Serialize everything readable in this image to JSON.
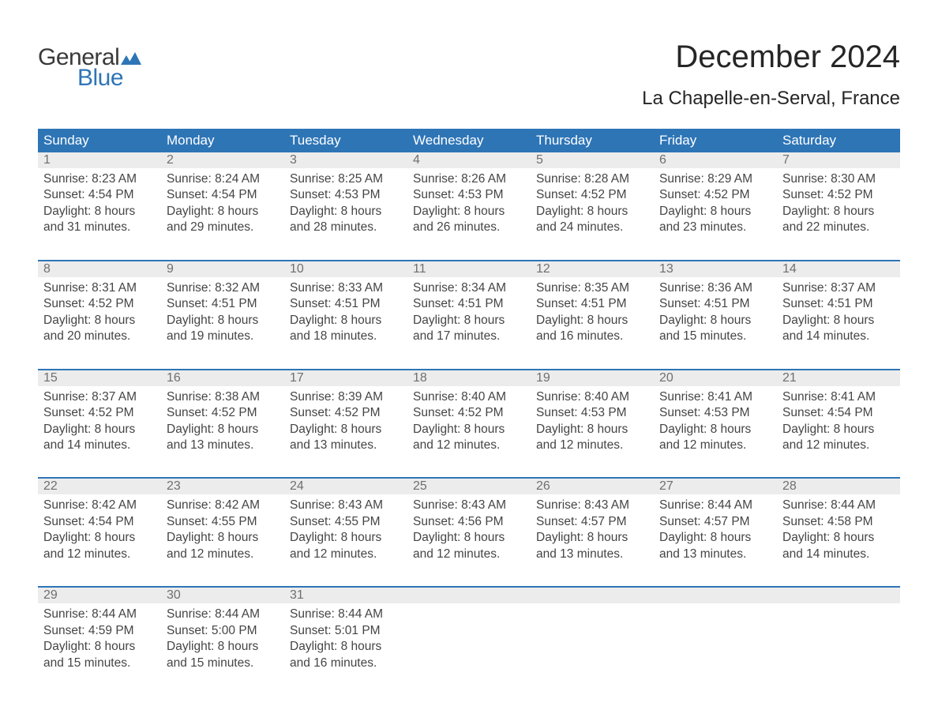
{
  "logo": {
    "top": "General",
    "bottom": "Blue",
    "icon_color": "#2e75b6"
  },
  "title": "December 2024",
  "location": "La Chapelle-en-Serval, France",
  "colors": {
    "header_bg": "#2e75b6",
    "header_text": "#ffffff",
    "daynum_bg": "#ececec",
    "daynum_text": "#6f6f6f",
    "body_text": "#454545",
    "background": "#ffffff"
  },
  "typography": {
    "title_fontsize": 40,
    "location_fontsize": 24,
    "header_fontsize": 17,
    "daynum_fontsize": 16,
    "cell_fontsize": 15.5
  },
  "day_headers": [
    "Sunday",
    "Monday",
    "Tuesday",
    "Wednesday",
    "Thursday",
    "Friday",
    "Saturday"
  ],
  "weeks": [
    [
      {
        "n": "1",
        "sunrise": "8:23 AM",
        "sunset": "4:54 PM",
        "dl1": "8 hours",
        "dl2": "and 31 minutes."
      },
      {
        "n": "2",
        "sunrise": "8:24 AM",
        "sunset": "4:54 PM",
        "dl1": "8 hours",
        "dl2": "and 29 minutes."
      },
      {
        "n": "3",
        "sunrise": "8:25 AM",
        "sunset": "4:53 PM",
        "dl1": "8 hours",
        "dl2": "and 28 minutes."
      },
      {
        "n": "4",
        "sunrise": "8:26 AM",
        "sunset": "4:53 PM",
        "dl1": "8 hours",
        "dl2": "and 26 minutes."
      },
      {
        "n": "5",
        "sunrise": "8:28 AM",
        "sunset": "4:52 PM",
        "dl1": "8 hours",
        "dl2": "and 24 minutes."
      },
      {
        "n": "6",
        "sunrise": "8:29 AM",
        "sunset": "4:52 PM",
        "dl1": "8 hours",
        "dl2": "and 23 minutes."
      },
      {
        "n": "7",
        "sunrise": "8:30 AM",
        "sunset": "4:52 PM",
        "dl1": "8 hours",
        "dl2": "and 22 minutes."
      }
    ],
    [
      {
        "n": "8",
        "sunrise": "8:31 AM",
        "sunset": "4:52 PM",
        "dl1": "8 hours",
        "dl2": "and 20 minutes."
      },
      {
        "n": "9",
        "sunrise": "8:32 AM",
        "sunset": "4:51 PM",
        "dl1": "8 hours",
        "dl2": "and 19 minutes."
      },
      {
        "n": "10",
        "sunrise": "8:33 AM",
        "sunset": "4:51 PM",
        "dl1": "8 hours",
        "dl2": "and 18 minutes."
      },
      {
        "n": "11",
        "sunrise": "8:34 AM",
        "sunset": "4:51 PM",
        "dl1": "8 hours",
        "dl2": "and 17 minutes."
      },
      {
        "n": "12",
        "sunrise": "8:35 AM",
        "sunset": "4:51 PM",
        "dl1": "8 hours",
        "dl2": "and 16 minutes."
      },
      {
        "n": "13",
        "sunrise": "8:36 AM",
        "sunset": "4:51 PM",
        "dl1": "8 hours",
        "dl2": "and 15 minutes."
      },
      {
        "n": "14",
        "sunrise": "8:37 AM",
        "sunset": "4:51 PM",
        "dl1": "8 hours",
        "dl2": "and 14 minutes."
      }
    ],
    [
      {
        "n": "15",
        "sunrise": "8:37 AM",
        "sunset": "4:52 PM",
        "dl1": "8 hours",
        "dl2": "and 14 minutes."
      },
      {
        "n": "16",
        "sunrise": "8:38 AM",
        "sunset": "4:52 PM",
        "dl1": "8 hours",
        "dl2": "and 13 minutes."
      },
      {
        "n": "17",
        "sunrise": "8:39 AM",
        "sunset": "4:52 PM",
        "dl1": "8 hours",
        "dl2": "and 13 minutes."
      },
      {
        "n": "18",
        "sunrise": "8:40 AM",
        "sunset": "4:52 PM",
        "dl1": "8 hours",
        "dl2": "and 12 minutes."
      },
      {
        "n": "19",
        "sunrise": "8:40 AM",
        "sunset": "4:53 PM",
        "dl1": "8 hours",
        "dl2": "and 12 minutes."
      },
      {
        "n": "20",
        "sunrise": "8:41 AM",
        "sunset": "4:53 PM",
        "dl1": "8 hours",
        "dl2": "and 12 minutes."
      },
      {
        "n": "21",
        "sunrise": "8:41 AM",
        "sunset": "4:54 PM",
        "dl1": "8 hours",
        "dl2": "and 12 minutes."
      }
    ],
    [
      {
        "n": "22",
        "sunrise": "8:42 AM",
        "sunset": "4:54 PM",
        "dl1": "8 hours",
        "dl2": "and 12 minutes."
      },
      {
        "n": "23",
        "sunrise": "8:42 AM",
        "sunset": "4:55 PM",
        "dl1": "8 hours",
        "dl2": "and 12 minutes."
      },
      {
        "n": "24",
        "sunrise": "8:43 AM",
        "sunset": "4:55 PM",
        "dl1": "8 hours",
        "dl2": "and 12 minutes."
      },
      {
        "n": "25",
        "sunrise": "8:43 AM",
        "sunset": "4:56 PM",
        "dl1": "8 hours",
        "dl2": "and 12 minutes."
      },
      {
        "n": "26",
        "sunrise": "8:43 AM",
        "sunset": "4:57 PM",
        "dl1": "8 hours",
        "dl2": "and 13 minutes."
      },
      {
        "n": "27",
        "sunrise": "8:44 AM",
        "sunset": "4:57 PM",
        "dl1": "8 hours",
        "dl2": "and 13 minutes."
      },
      {
        "n": "28",
        "sunrise": "8:44 AM",
        "sunset": "4:58 PM",
        "dl1": "8 hours",
        "dl2": "and 14 minutes."
      }
    ],
    [
      {
        "n": "29",
        "sunrise": "8:44 AM",
        "sunset": "4:59 PM",
        "dl1": "8 hours",
        "dl2": "and 15 minutes."
      },
      {
        "n": "30",
        "sunrise": "8:44 AM",
        "sunset": "5:00 PM",
        "dl1": "8 hours",
        "dl2": "and 15 minutes."
      },
      {
        "n": "31",
        "sunrise": "8:44 AM",
        "sunset": "5:01 PM",
        "dl1": "8 hours",
        "dl2": "and 16 minutes."
      },
      null,
      null,
      null,
      null
    ]
  ],
  "labels": {
    "sunrise": "Sunrise: ",
    "sunset": "Sunset: ",
    "daylight": "Daylight: "
  }
}
